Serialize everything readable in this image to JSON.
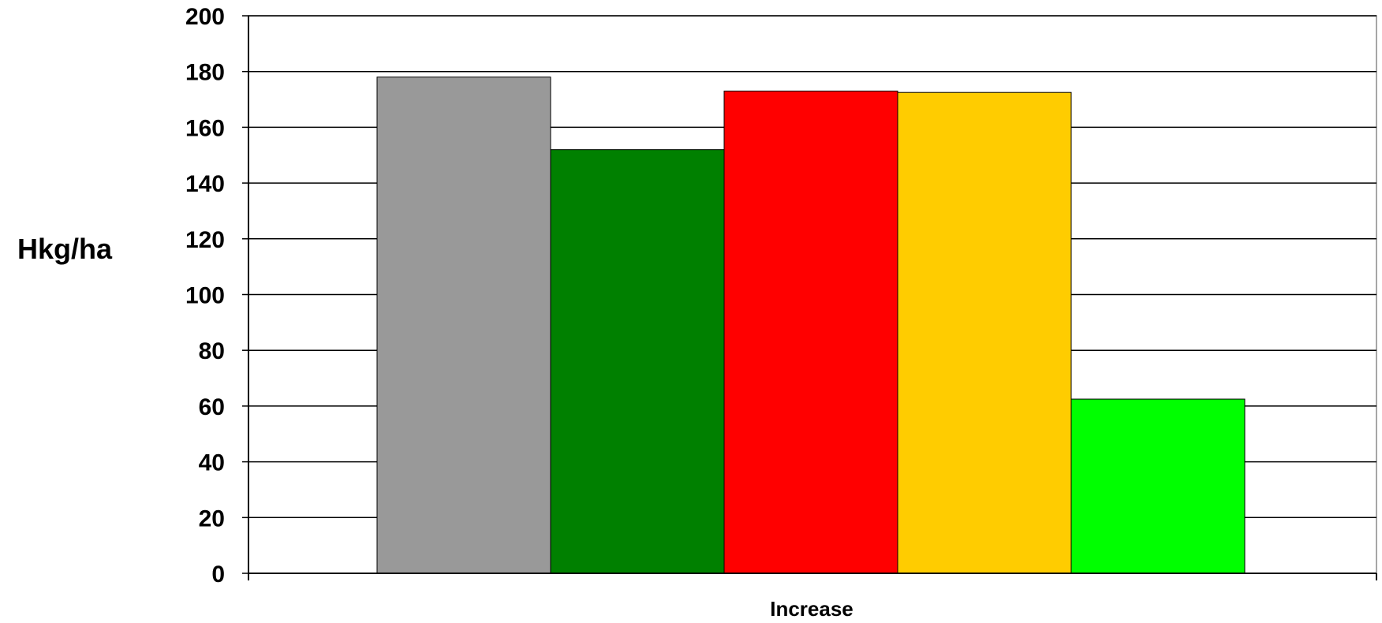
{
  "chart_data": {
    "type": "bar",
    "title": "",
    "xlabel": "Increase",
    "ylabel": "Hkg/ha",
    "ylim": [
      0,
      200
    ],
    "yticks": [
      0,
      20,
      40,
      60,
      80,
      100,
      120,
      140,
      160,
      180,
      200
    ],
    "categories": [
      "Increase"
    ],
    "series": [
      {
        "values": [
          178
        ],
        "color": "#999999"
      },
      {
        "values": [
          152
        ],
        "color": "#008000"
      },
      {
        "values": [
          173
        ],
        "color": "#ff0000"
      },
      {
        "values": [
          172.5
        ],
        "color": "#ffcc00"
      },
      {
        "values": [
          62.5
        ],
        "color": "#00ff00"
      }
    ],
    "grid": true,
    "legend": "none"
  }
}
